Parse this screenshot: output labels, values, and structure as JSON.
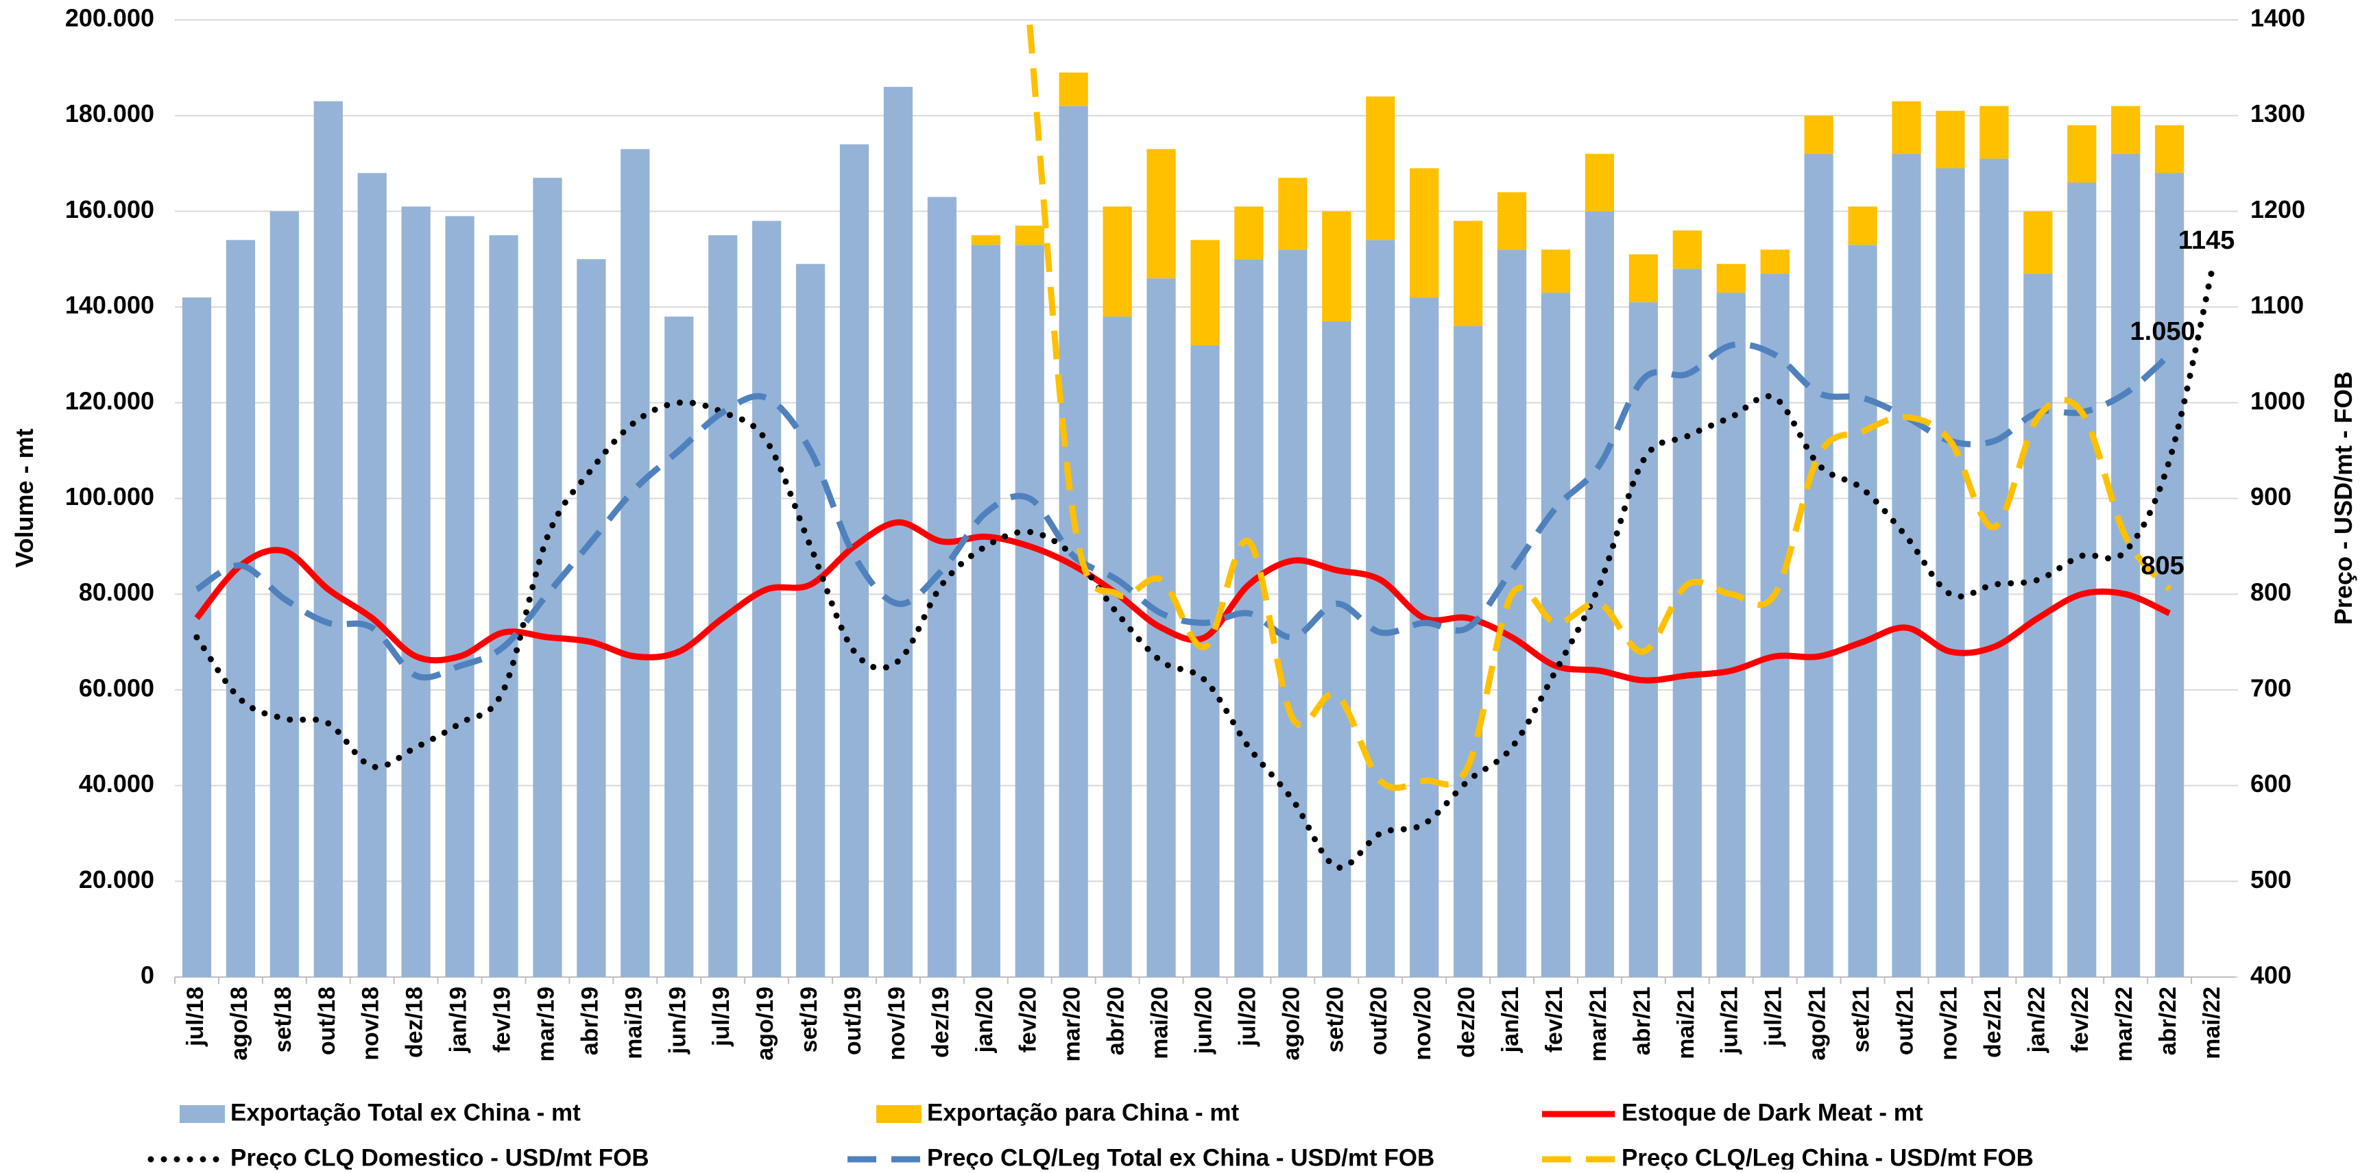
{
  "chart_data": {
    "type": "combo",
    "y_label": "Volume - mt",
    "y2_label": "Preço - USD/mt - FOB",
    "categories": [
      "jul/18",
      "ago/18",
      "set/18",
      "out/18",
      "nov/18",
      "dez/18",
      "jan/19",
      "fev/19",
      "mar/19",
      "abr/19",
      "mai/19",
      "jun/19",
      "jul/19",
      "ago/19",
      "set/19",
      "out/19",
      "nov/19",
      "dez/19",
      "jan/20",
      "fev/20",
      "mar/20",
      "abr/20",
      "mai/20",
      "jun/20",
      "jul/20",
      "ago/20",
      "set/20",
      "out/20",
      "nov/20",
      "dez/20",
      "jan/21",
      "fev/21",
      "mar/21",
      "abr/21",
      "mai/21",
      "jun/21",
      "jul/21",
      "ago/21",
      "set/21",
      "out/21",
      "nov/21",
      "dez/21",
      "jan/22",
      "fev/22",
      "mar/22",
      "abr/22",
      "mai/22"
    ],
    "ylim": [
      0,
      200000
    ],
    "yticks": [
      {
        "value": 0,
        "label": "0"
      },
      {
        "value": 20000,
        "label": "20.000"
      },
      {
        "value": 40000,
        "label": "40.000"
      },
      {
        "value": 60000,
        "label": "60.000"
      },
      {
        "value": 80000,
        "label": "80.000"
      },
      {
        "value": 100000,
        "label": "100.000"
      },
      {
        "value": 120000,
        "label": "120.000"
      },
      {
        "value": 140000,
        "label": "140.000"
      },
      {
        "value": 160000,
        "label": "160.000"
      },
      {
        "value": 180000,
        "label": "180.000"
      },
      {
        "value": 200000,
        "label": "200.000"
      }
    ],
    "y2lim": [
      400,
      1400
    ],
    "y2ticks": [
      400,
      500,
      600,
      700,
      800,
      900,
      1000,
      1100,
      1200,
      1300,
      1400
    ],
    "grid": true,
    "series": [
      {
        "name": "Exportação Total ex China - mt",
        "type": "bar",
        "color": "#95b3d7",
        "values": [
          142000,
          154000,
          160000,
          183000,
          168000,
          161000,
          159000,
          155000,
          167000,
          150000,
          173000,
          138000,
          155000,
          158000,
          149000,
          174000,
          186000,
          163000,
          153000,
          153000,
          182000,
          138000,
          146000,
          132000,
          150000,
          152000,
          137000,
          154000,
          142000,
          136000,
          152000,
          143000,
          160000,
          141000,
          148000,
          143000,
          147000,
          172000,
          153000,
          172000,
          169000,
          171000,
          147000,
          166000,
          172000,
          168000,
          null
        ]
      },
      {
        "name": "Exportação para China - mt",
        "type": "bar",
        "color": "#ffc000",
        "values": [
          null,
          null,
          null,
          null,
          null,
          null,
          null,
          null,
          null,
          null,
          null,
          null,
          null,
          null,
          null,
          null,
          null,
          null,
          2000,
          4000,
          7000,
          23000,
          27000,
          22000,
          11000,
          15000,
          23000,
          30000,
          27000,
          22000,
          12000,
          9000,
          12000,
          10000,
          8000,
          6000,
          5000,
          8000,
          8000,
          11000,
          12000,
          11000,
          13000,
          12000,
          10000,
          10000,
          null
        ]
      },
      {
        "name": "Estoque de Dark Meat - mt",
        "type": "line",
        "dash": "solid",
        "color": "#ff0000",
        "values": [
          75000,
          86000,
          89000,
          81000,
          75000,
          67000,
          67000,
          72000,
          71000,
          70000,
          67000,
          68000,
          75000,
          81000,
          82000,
          90000,
          95000,
          91000,
          92000,
          90000,
          86000,
          80000,
          73000,
          71000,
          82000,
          87000,
          85000,
          83000,
          75000,
          75000,
          71000,
          65000,
          64000,
          62000,
          63000,
          64000,
          67000,
          67000,
          70000,
          73000,
          68000,
          69000,
          75000,
          80000,
          80000,
          76000,
          null
        ]
      },
      {
        "name": "Preço CLQ Domestico - USD/mt FOB",
        "type": "line",
        "dash": "dotted",
        "color": "#000000",
        "axis": "y2",
        "values": [
          755,
          690,
          670,
          665,
          620,
          640,
          665,
          700,
          860,
          930,
          980,
          1000,
          990,
          960,
          850,
          740,
          730,
          810,
          850,
          865,
          840,
          780,
          730,
          710,
          640,
          585,
          515,
          550,
          560,
          605,
          640,
          720,
          810,
          940,
          965,
          985,
          1005,
          935,
          910,
          860,
          800,
          810,
          815,
          840,
          845,
          940,
          1145
        ],
        "value_labels": [
          null,
          null,
          null,
          null,
          null,
          null,
          null,
          null,
          null,
          null,
          null,
          null,
          null,
          null,
          null,
          null,
          null,
          null,
          null,
          null,
          null,
          null,
          null,
          null,
          null,
          null,
          null,
          null,
          null,
          null,
          null,
          null,
          null,
          null,
          null,
          null,
          null,
          null,
          null,
          null,
          null,
          null,
          null,
          null,
          null,
          null,
          "1145"
        ]
      },
      {
        "name": "Preço CLQ/Leg Total ex China - USD/mt FOB",
        "type": "line",
        "dash": "dashed",
        "color": "#4f81bd",
        "axis": "y2",
        "values": [
          805,
          830,
          795,
          770,
          765,
          715,
          725,
          745,
          800,
          855,
          910,
          950,
          990,
          1005,
          950,
          840,
          790,
          825,
          885,
          900,
          840,
          815,
          780,
          770,
          780,
          755,
          790,
          760,
          770,
          765,
          825,
          890,
          935,
          1025,
          1030,
          1060,
          1050,
          1010,
          1005,
          985,
          960,
          960,
          990,
          990,
          1010,
          1050,
          null
        ],
        "value_labels": [
          null,
          null,
          null,
          null,
          null,
          null,
          null,
          null,
          null,
          null,
          null,
          null,
          null,
          null,
          null,
          null,
          null,
          null,
          null,
          null,
          null,
          null,
          null,
          null,
          null,
          null,
          null,
          null,
          null,
          null,
          null,
          null,
          null,
          null,
          null,
          null,
          null,
          null,
          null,
          null,
          null,
          null,
          null,
          null,
          null,
          "1.050",
          null
        ]
      },
      {
        "name": "Preço CLQ/Leg China - USD/mt FOB",
        "type": "line",
        "dash": "dashed",
        "color": "#ffc000",
        "axis": "y2",
        "values": [
          null,
          null,
          null,
          null,
          null,
          null,
          null,
          null,
          null,
          null,
          null,
          null,
          null,
          null,
          null,
          null,
          null,
          null,
          null,
          1395,
          880,
          800,
          815,
          745,
          855,
          670,
          695,
          605,
          605,
          620,
          800,
          770,
          790,
          740,
          810,
          800,
          800,
          945,
          970,
          985,
          960,
          870,
          985,
          990,
          860,
          805,
          null
        ],
        "value_labels": [
          null,
          null,
          null,
          null,
          null,
          null,
          null,
          null,
          null,
          null,
          null,
          null,
          null,
          null,
          null,
          null,
          null,
          null,
          null,
          null,
          null,
          null,
          null,
          null,
          null,
          null,
          null,
          null,
          null,
          null,
          null,
          null,
          null,
          null,
          null,
          null,
          null,
          null,
          null,
          null,
          null,
          null,
          null,
          null,
          null,
          "805",
          null
        ]
      }
    ]
  }
}
